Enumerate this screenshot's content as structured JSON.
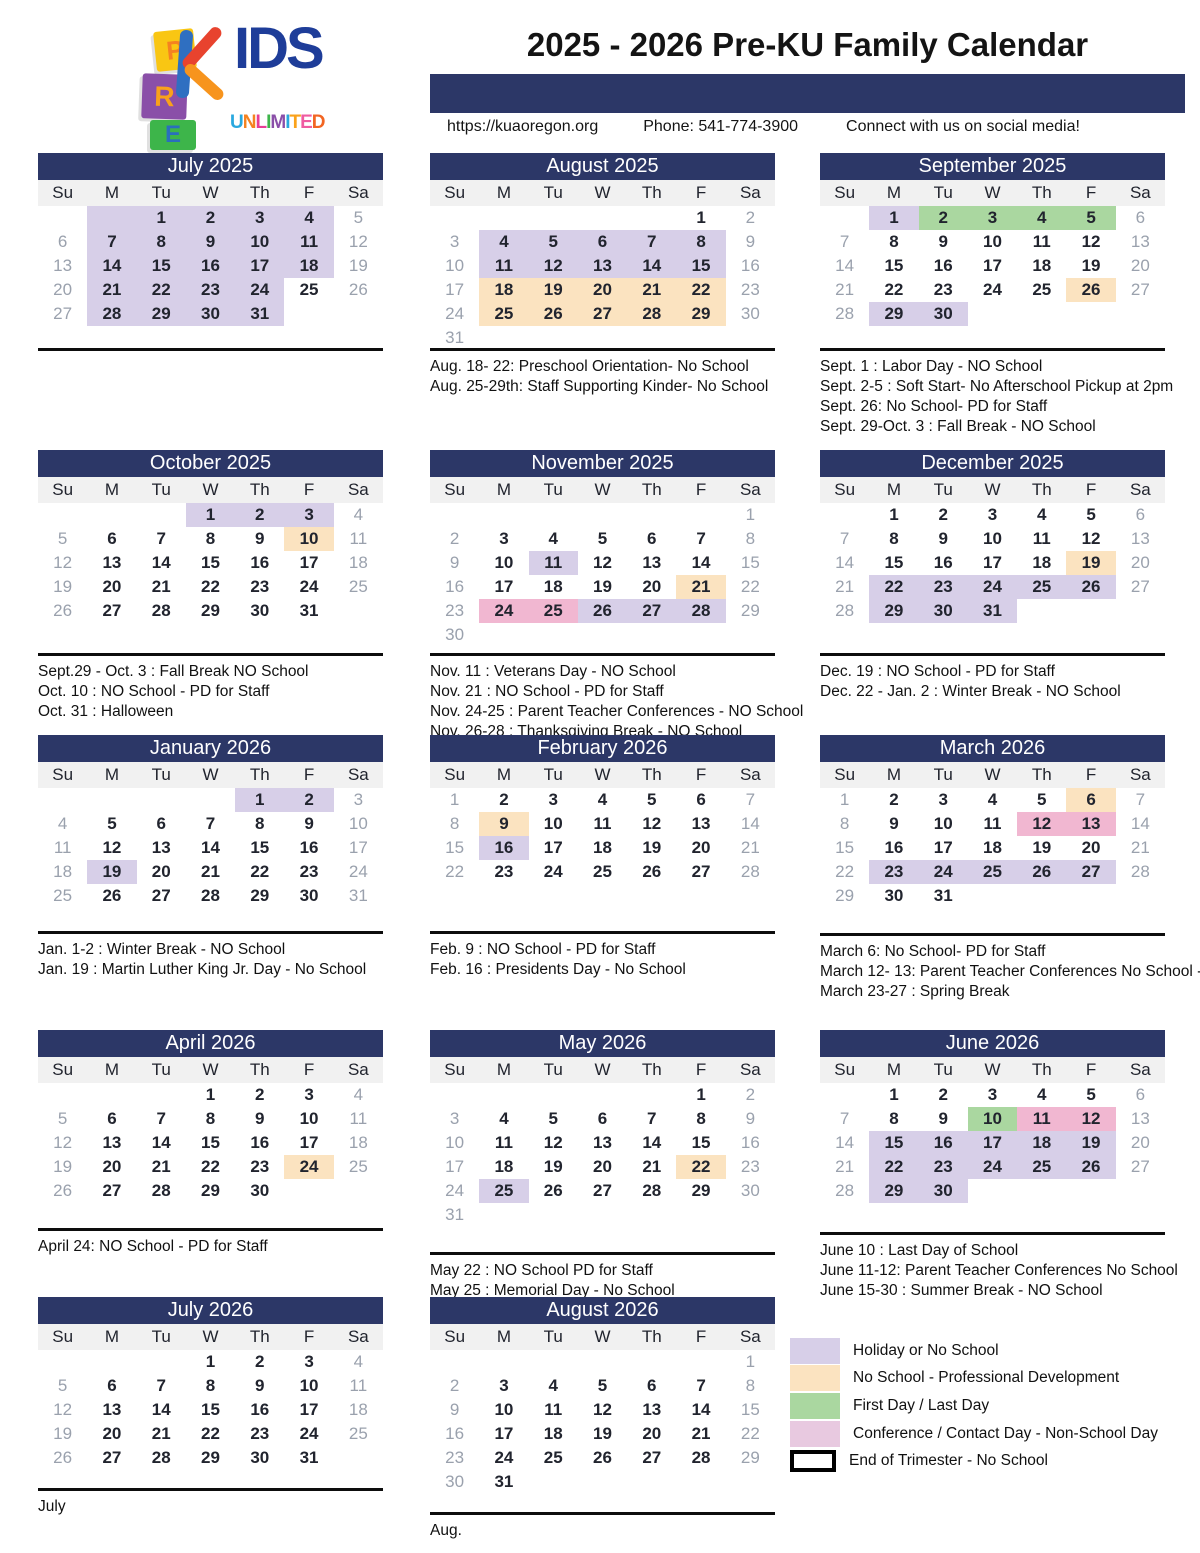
{
  "header": {
    "title": "2025 - 2026 Pre-KU Family Calendar",
    "website": "https://kuaoregon.org",
    "phone": "Phone: 541-774-3900",
    "social": "Connect with us on social media!",
    "logo": {
      "block_letters": [
        "P",
        "R",
        "E"
      ],
      "kids_text": "IDS",
      "unlimited_letters": [
        {
          "ch": "U",
          "color": "#29a8df"
        },
        {
          "ch": "N",
          "color": "#f58220"
        },
        {
          "ch": "L",
          "color": "#e73c96"
        },
        {
          "ch": "I",
          "color": "#3db54a"
        },
        {
          "ch": "M",
          "color": "#8a4fa8"
        },
        {
          "ch": "I",
          "color": "#29a8df"
        },
        {
          "ch": "T",
          "color": "#faa21b"
        },
        {
          "ch": "E",
          "color": "#ef5ba1"
        },
        {
          "ch": "D",
          "color": "#f26522"
        }
      ]
    }
  },
  "colors": {
    "navy": "#2c3767",
    "holiday": "#d7cfe8",
    "pd": "#fbe3c0",
    "firstlast": "#aad7a0",
    "conference": "#f1b7d1",
    "legend_conference": "#e8c9e0",
    "weekend_text": "#9aa1ad"
  },
  "weekdays": [
    "Su",
    "M",
    "Tu",
    "W",
    "Th",
    "F",
    "Sa"
  ],
  "months": [
    {
      "name": "July 2025",
      "first_dow": 2,
      "days": 31,
      "highlights": {
        "1": "holiday",
        "2": "holiday",
        "3": "holiday",
        "4": "holiday",
        "7": "holiday",
        "8": "holiday",
        "9": "holiday",
        "10": "holiday",
        "11": "holiday",
        "14": "holiday",
        "15": "holiday",
        "16": "holiday",
        "17": "holiday",
        "18": "holiday",
        "21": "holiday",
        "22": "holiday",
        "23": "holiday",
        "24": "holiday",
        "28": "holiday",
        "29": "holiday",
        "30": "holiday",
        "31": "holiday"
      },
      "empty_highlights": [
        {
          "row": 0,
          "col": 1,
          "color": "holiday"
        }
      ],
      "notes": []
    },
    {
      "name": "August 2025",
      "first_dow": 5,
      "days": 31,
      "highlights": {
        "4": "holiday",
        "5": "holiday",
        "6": "holiday",
        "7": "holiday",
        "8": "holiday",
        "11": "holiday",
        "12": "holiday",
        "13": "holiday",
        "14": "holiday",
        "15": "holiday",
        "18": "pd",
        "19": "pd",
        "20": "pd",
        "21": "pd",
        "22": "pd",
        "25": "pd",
        "26": "pd",
        "27": "pd",
        "28": "pd",
        "29": "pd"
      },
      "empty_highlights": [],
      "notes": [
        "Aug. 18- 22: Preschool Orientation- No School",
        "Aug. 25-29th: Staff Supporting Kinder- No School"
      ]
    },
    {
      "name": "September 2025",
      "first_dow": 1,
      "days": 30,
      "highlights": {
        "1": "holiday",
        "2": "firstlast",
        "3": "firstlast",
        "4": "firstlast",
        "5": "firstlast",
        "26": "pd",
        "29": "holiday",
        "30": "holiday"
      },
      "empty_highlights": [],
      "notes": [
        "Sept. 1 : Labor Day - NO School",
        "Sept. 2-5 : Soft Start- No Afterschool Pickup at 2pm",
        "Sept. 26: No School- PD for Staff",
        "Sept. 29-Oct. 3 : Fall Break - NO School"
      ]
    },
    {
      "name": "October 2025",
      "first_dow": 3,
      "days": 31,
      "highlights": {
        "1": "holiday",
        "2": "holiday",
        "3": "holiday",
        "10": "pd"
      },
      "empty_highlights": [],
      "notes": [
        "Sept.29 - Oct. 3 : Fall Break NO School",
        "Oct. 10 : NO School - PD for Staff",
        "Oct. 31 : Halloween"
      ]
    },
    {
      "name": "November 2025",
      "first_dow": 6,
      "days": 30,
      "highlights": {
        "11": "holiday",
        "21": "pd",
        "24": "conference",
        "25": "conference",
        "26": "holiday",
        "27": "holiday",
        "28": "holiday"
      },
      "empty_highlights": [],
      "notes": [
        "Nov. 11 : Veterans Day - NO School",
        "Nov. 21 : NO School - PD for Staff",
        "Nov. 24-25 : Parent Teacher Conferences - NO School",
        "Nov. 26-28 : Thanksgiving Break - NO School"
      ]
    },
    {
      "name": "December 2025",
      "first_dow": 1,
      "days": 31,
      "highlights": {
        "19": "pd",
        "22": "holiday",
        "23": "holiday",
        "24": "holiday",
        "25": "holiday",
        "26": "holiday",
        "29": "holiday",
        "30": "holiday",
        "31": "holiday"
      },
      "empty_highlights": [],
      "notes": [
        "Dec. 19 : NO School - PD for Staff",
        "Dec. 22 - Jan. 2 : Winter Break - NO School"
      ]
    },
    {
      "name": "January 2026",
      "first_dow": 4,
      "days": 31,
      "highlights": {
        "1": "holiday",
        "2": "holiday",
        "19": "holiday"
      },
      "empty_highlights": [],
      "notes": [
        "Jan. 1-2 : Winter Break - NO School",
        "Jan. 19 : Martin Luther King Jr. Day - No School"
      ]
    },
    {
      "name": "February 2026",
      "first_dow": 0,
      "days": 28,
      "highlights": {
        "9": "pd",
        "16": "holiday"
      },
      "empty_highlights": [],
      "notes": [
        "Feb. 9 : NO School - PD for Staff",
        "Feb. 16 : Presidents Day - No School"
      ]
    },
    {
      "name": "March 2026",
      "first_dow": 0,
      "days": 31,
      "highlights": {
        "6": "pd",
        "12": "conference",
        "13": "conference",
        "23": "holiday",
        "24": "holiday",
        "25": "holiday",
        "26": "holiday",
        "27": "holiday"
      },
      "empty_highlights": [],
      "notes": [
        "March 6: No School- PD  for Staff",
        "March 12- 13: Parent Teacher Conferences No School -",
        "March 23-27 : Spring Break"
      ]
    },
    {
      "name": "April 2026",
      "first_dow": 3,
      "days": 30,
      "highlights": {
        "24": "pd"
      },
      "empty_highlights": [],
      "notes": [
        "April 24: NO School - PD for Staff"
      ]
    },
    {
      "name": "May 2026",
      "first_dow": 5,
      "days": 31,
      "highlights": {
        "22": "pd",
        "25": "holiday"
      },
      "empty_highlights": [],
      "notes": [
        "May 22 : NO School PD for Staff",
        "May 25 : Memorial Day - No School"
      ]
    },
    {
      "name": "June 2026",
      "first_dow": 1,
      "days": 30,
      "highlights": {
        "10": "firstlast",
        "11": "conference",
        "12": "conference",
        "15": "holiday",
        "16": "holiday",
        "17": "holiday",
        "18": "holiday",
        "19": "holiday",
        "22": "holiday",
        "23": "holiday",
        "24": "holiday",
        "25": "holiday",
        "26": "holiday",
        "29": "holiday",
        "30": "holiday"
      },
      "empty_highlights": [],
      "notes": [
        "June 10 : Last Day of School",
        "June 11-12: Parent Teacher Conferences No School",
        "June 15-30 : Summer Break - NO School"
      ]
    },
    {
      "name": "July 2026",
      "first_dow": 3,
      "days": 31,
      "highlights": {},
      "empty_highlights": [],
      "notes": [
        "July"
      ]
    },
    {
      "name": "August 2026",
      "first_dow": 6,
      "days": 31,
      "highlights": {},
      "empty_highlights": [],
      "notes": [
        "Aug."
      ]
    }
  ],
  "legend": [
    {
      "label": "Holiday or No School",
      "color": "holiday"
    },
    {
      "label": "No School - Professional Development",
      "color": "pd"
    },
    {
      "label": "First Day / Last Day",
      "color": "firstlast"
    },
    {
      "label": "Conference / Contact Day  - Non-School Day",
      "color": "legend_conference"
    },
    {
      "label": "End of Trimester  - No School",
      "color": "trimester_outline",
      "outline": true
    }
  ]
}
